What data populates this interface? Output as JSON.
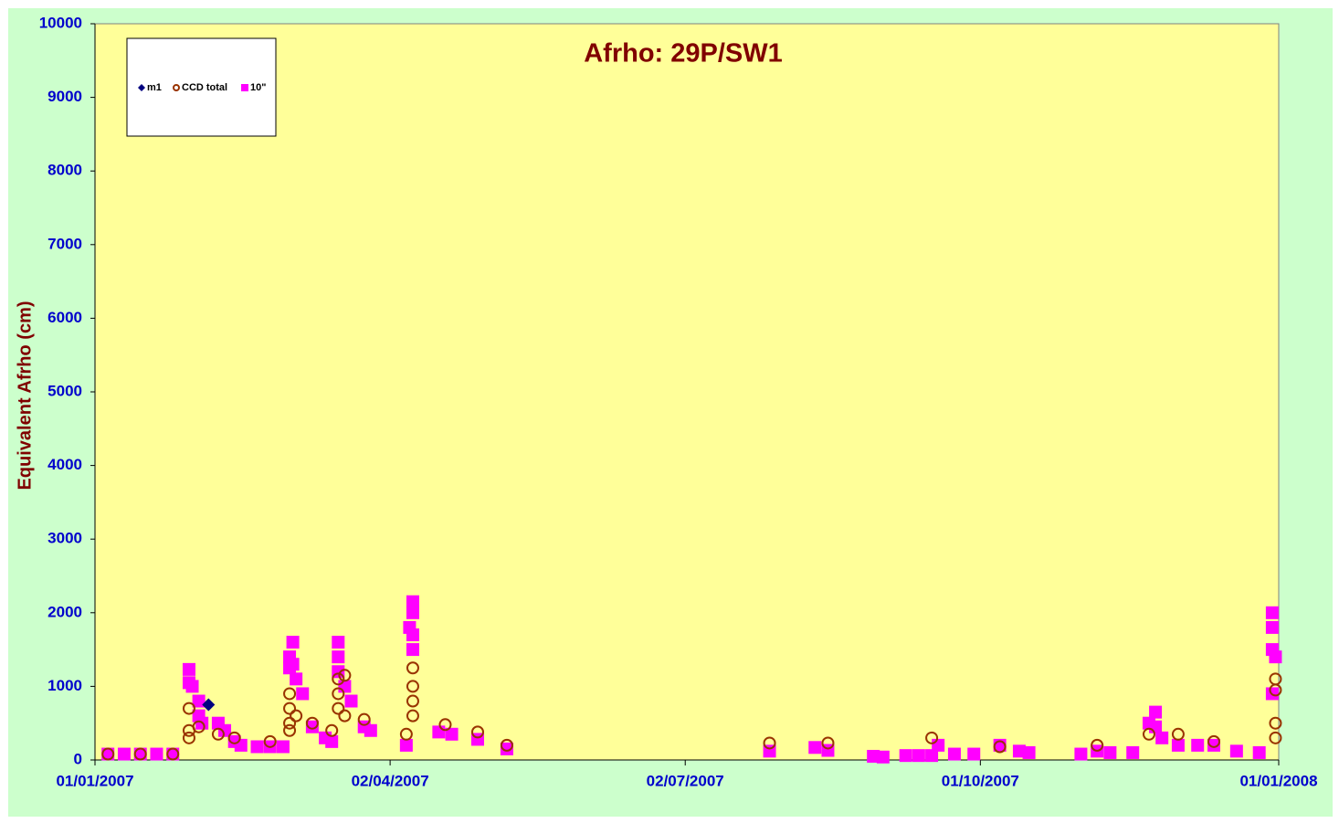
{
  "chart_data": {
    "type": "scatter",
    "title": "Afrho: 29P/SW1",
    "y_label": "Equivalent Afrho (cm)",
    "xlim": [
      "01/01/2007",
      "01/01/2008"
    ],
    "xticks": [
      "01/01/2007",
      "02/04/2007",
      "02/07/2007",
      "01/10/2007",
      "01/01/2008"
    ],
    "ylim": [
      0,
      10000
    ],
    "yticks": [
      0,
      1000,
      2000,
      3000,
      4000,
      5000,
      6000,
      7000,
      8000,
      9000,
      10000
    ],
    "legend": "upper left",
    "series": [
      {
        "name": "m1",
        "color": "#000080",
        "marker": "diamond",
        "x": [
          "05/02/2007"
        ],
        "values": [
          750
        ]
      },
      {
        "name": "CCD total",
        "color": "#993300",
        "marker": "circle",
        "x": [
          "05/01/2007",
          "15/01/2007",
          "25/01/2007",
          "30/01/2007",
          "30/01/2007",
          "30/01/2007",
          "02/02/2007",
          "08/02/2007",
          "13/02/2007",
          "24/02/2007",
          "02/03/2007",
          "02/03/2007",
          "02/03/2007",
          "02/03/2007",
          "04/03/2007",
          "09/03/2007",
          "15/03/2007",
          "17/03/2007",
          "17/03/2007",
          "17/03/2007",
          "19/03/2007",
          "19/03/2007",
          "25/03/2007",
          "07/04/2007",
          "09/04/2007",
          "09/04/2007",
          "09/04/2007",
          "09/04/2007",
          "19/04/2007",
          "29/04/2007",
          "08/05/2007",
          "28/07/2007",
          "15/08/2007",
          "16/09/2007",
          "07/10/2007",
          "06/11/2007",
          "22/11/2007",
          "01/12/2007",
          "12/12/2007",
          "31/12/2007",
          "31/12/2007",
          "31/12/2007",
          "31/12/2007"
        ],
        "values": [
          80,
          80,
          80,
          700,
          400,
          300,
          450,
          350,
          300,
          250,
          900,
          700,
          500,
          400,
          600,
          500,
          400,
          1100,
          900,
          700,
          1150,
          600,
          550,
          350,
          1250,
          1000,
          800,
          600,
          480,
          380,
          200,
          230,
          230,
          300,
          180,
          200,
          350,
          350,
          250,
          1100,
          950,
          500,
          300
        ]
      },
      {
        "name": "10\"",
        "color": "#ff00ff",
        "marker": "square",
        "x": [
          "05/01/2007",
          "10/01/2007",
          "15/01/2007",
          "20/01/2007",
          "25/01/2007",
          "30/01/2007",
          "30/01/2007",
          "31/01/2007",
          "02/02/2007",
          "02/02/2007",
          "03/02/2007",
          "08/02/2007",
          "10/02/2007",
          "13/02/2007",
          "15/02/2007",
          "20/02/2007",
          "24/02/2007",
          "28/02/2007",
          "02/03/2007",
          "02/03/2007",
          "03/03/2007",
          "03/03/2007",
          "04/03/2007",
          "06/03/2007",
          "09/03/2007",
          "13/03/2007",
          "15/03/2007",
          "17/03/2007",
          "17/03/2007",
          "17/03/2007",
          "19/03/2007",
          "21/03/2007",
          "25/03/2007",
          "27/03/2007",
          "07/04/2007",
          "08/04/2007",
          "09/04/2007",
          "09/04/2007",
          "09/04/2007",
          "09/04/2007",
          "17/04/2007",
          "21/04/2007",
          "29/04/2007",
          "08/05/2007",
          "28/07/2007",
          "11/08/2007",
          "15/08/2007",
          "29/08/2007",
          "01/09/2007",
          "08/09/2007",
          "12/09/2007",
          "16/09/2007",
          "18/09/2007",
          "23/09/2007",
          "29/09/2007",
          "07/10/2007",
          "13/10/2007",
          "16/10/2007",
          "01/11/2007",
          "06/11/2007",
          "10/11/2007",
          "17/11/2007",
          "22/11/2007",
          "24/11/2007",
          "24/11/2007",
          "26/11/2007",
          "01/12/2007",
          "07/12/2007",
          "12/12/2007",
          "19/12/2007",
          "26/12/2007",
          "30/12/2007",
          "30/12/2007",
          "30/12/2007",
          "30/12/2007",
          "31/12/2007"
        ],
        "values": [
          80,
          80,
          80,
          80,
          80,
          1230,
          1050,
          1000,
          800,
          600,
          500,
          500,
          400,
          250,
          200,
          180,
          180,
          180,
          1400,
          1250,
          1600,
          1300,
          1100,
          900,
          450,
          300,
          250,
          1600,
          1400,
          1200,
          1000,
          800,
          450,
          400,
          200,
          1800,
          2150,
          2000,
          1700,
          1500,
          380,
          350,
          280,
          150,
          120,
          170,
          130,
          50,
          40,
          60,
          60,
          60,
          200,
          80,
          80,
          200,
          120,
          100,
          80,
          120,
          100,
          100,
          500,
          650,
          450,
          300,
          200,
          200,
          200,
          120,
          100,
          2000,
          1800,
          1500,
          900,
          1400
        ]
      }
    ]
  }
}
